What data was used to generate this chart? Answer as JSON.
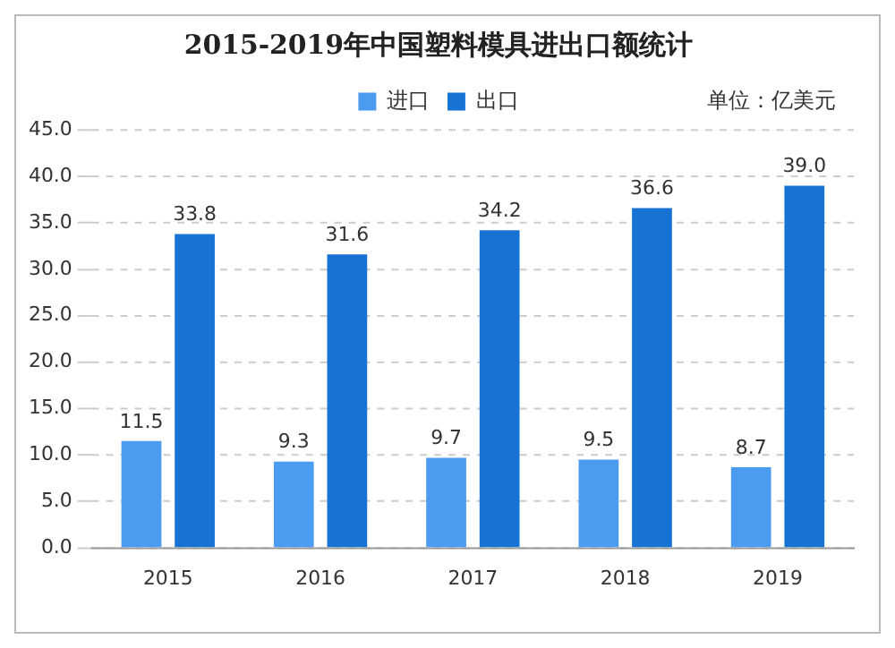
{
  "chart_data": {
    "type": "bar",
    "title": "2015-2019年中国塑料模具进出口额统计",
    "annotations": [
      "单位：亿美元"
    ],
    "categories": [
      "2015",
      "2016",
      "2017",
      "2018",
      "2019"
    ],
    "series": [
      {
        "name": "进口",
        "color": "#4b9cf0",
        "values": [
          11.5,
          9.3,
          9.7,
          9.5,
          8.7
        ],
        "value_labels": [
          "11.5",
          "9.3",
          "9.7",
          "9.5",
          "8.7"
        ]
      },
      {
        "name": "出口",
        "color": "#1673d4",
        "values": [
          33.8,
          31.6,
          34.2,
          36.6,
          39.0
        ],
        "value_labels": [
          "33.8",
          "31.6",
          "34.2",
          "36.6",
          "39.0"
        ]
      }
    ],
    "ylim": [
      0,
      45
    ],
    "yticks": [
      {
        "value": 0,
        "label": "0.0"
      },
      {
        "value": 5,
        "label": "5.0"
      },
      {
        "value": 10,
        "label": "10.0"
      },
      {
        "value": 15,
        "label": "15.0"
      },
      {
        "value": 20,
        "label": "20.0"
      },
      {
        "value": 25,
        "label": "25.0"
      },
      {
        "value": 30,
        "label": "30.0"
      },
      {
        "value": 35,
        "label": "35.0"
      },
      {
        "value": 40,
        "label": "40.0"
      },
      {
        "value": 45,
        "label": "45.0"
      }
    ],
    "grid": "y",
    "legend": "top"
  }
}
